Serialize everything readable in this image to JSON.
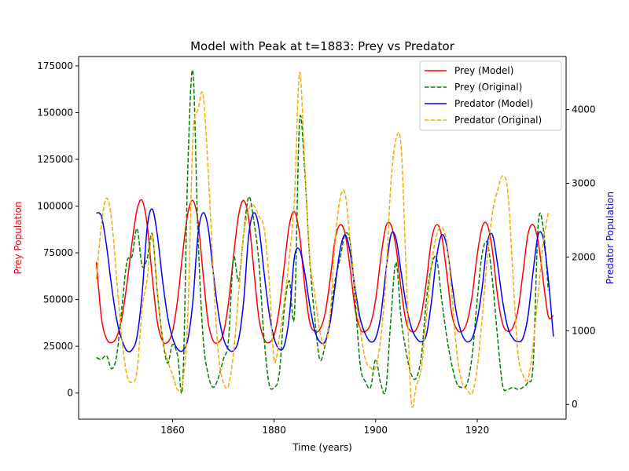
{
  "chart_data": {
    "type": "line",
    "title": "Model with Peak at t=1883: Prey vs Predator",
    "xlabel": "Time (years)",
    "ylabel_left": "Prey Population",
    "ylabel_right": "Predator Population",
    "xlim": [
      1841.5,
      1937.5
    ],
    "ylim_left": [
      -14000,
      180000
    ],
    "ylim_right": [
      -200,
      4720
    ],
    "xticks": [
      1860,
      1880,
      1900,
      1920
    ],
    "xtick_labels": [
      "1860",
      "1880",
      "1900",
      "1920"
    ],
    "yticks_left": [
      0,
      25000,
      50000,
      75000,
      100000,
      125000,
      150000,
      175000
    ],
    "ytick_labels_left": [
      "0",
      "25000",
      "50000",
      "75000",
      "100000",
      "125000",
      "150000",
      "175000"
    ],
    "yticks_right": [
      0,
      1000,
      2000,
      3000,
      4000
    ],
    "ytick_labels_right": [
      "0",
      "1000",
      "2000",
      "3000",
      "4000"
    ],
    "grid": false,
    "legend_position": "top-right",
    "colors": {
      "prey_model": "#ff0000",
      "prey_original": "#008000",
      "predator_model": "#0000ff",
      "predator_original": "#ffa500",
      "ylabel_left": "#ff0000",
      "ylabel_right": "#0000ff"
    },
    "series": [
      {
        "name": "Prey (Model)",
        "axis": "left",
        "style": "solid",
        "color": "#ff0000",
        "x": [
          1845,
          1846,
          1847,
          1848,
          1849,
          1850,
          1851,
          1852,
          1853,
          1854,
          1855,
          1856,
          1857,
          1858,
          1859,
          1860,
          1861,
          1862,
          1863,
          1864,
          1865,
          1866,
          1867,
          1868,
          1869,
          1870,
          1871,
          1872,
          1873,
          1874,
          1875,
          1876,
          1877,
          1878,
          1879,
          1880,
          1881,
          1882,
          1883,
          1884,
          1885,
          1886,
          1887,
          1888,
          1889,
          1890,
          1891,
          1892,
          1893,
          1894,
          1895,
          1896,
          1897,
          1898,
          1899,
          1900,
          1901,
          1902,
          1903,
          1904,
          1905,
          1906,
          1907,
          1908,
          1909,
          1910,
          1911,
          1912,
          1913,
          1914,
          1915,
          1916,
          1917,
          1918,
          1919,
          1920,
          1921,
          1922,
          1923,
          1924,
          1925,
          1926,
          1927,
          1928,
          1929,
          1930,
          1931,
          1932,
          1933,
          1934,
          1935
        ],
        "values": [
          70000,
          40000,
          29000,
          27000,
          30000,
          40000,
          58000,
          80000,
          98000,
          103000,
          90000,
          62000,
          38000,
          28000,
          27000,
          33000,
          50000,
          75000,
          96000,
          103000,
          92000,
          64000,
          38000,
          28000,
          27000,
          32000,
          48000,
          73000,
          95000,
          103000,
          93000,
          66000,
          40000,
          29000,
          27000,
          31000,
          45000,
          68000,
          90000,
          97000,
          85000,
          58000,
          38000,
          33000,
          34000,
          42000,
          60000,
          82000,
          90000,
          85000,
          66000,
          44000,
          34000,
          33000,
          37000,
          50000,
          72000,
          89000,
          90000,
          78000,
          56000,
          38000,
          33000,
          34000,
          42000,
          60000,
          82000,
          90000,
          84000,
          64000,
          42000,
          34000,
          33000,
          38000,
          52000,
          74000,
          89000,
          90000,
          76000,
          52000,
          37000,
          33000,
          35000,
          44000,
          64000,
          85000,
          90000,
          81000,
          60000,
          41000,
          41500
        ]
      },
      {
        "name": "Prey (Original)",
        "axis": "left",
        "style": "dashed",
        "color": "#008000",
        "x": [
          1845,
          1846,
          1847,
          1848,
          1849,
          1850,
          1851,
          1852,
          1853,
          1854,
          1855,
          1856,
          1857,
          1858,
          1859,
          1860,
          1861,
          1862,
          1863,
          1864,
          1865,
          1866,
          1867,
          1868,
          1869,
          1870,
          1871,
          1872,
          1873,
          1874,
          1875,
          1876,
          1877,
          1878,
          1879,
          1880,
          1881,
          1882,
          1883,
          1884,
          1885,
          1886,
          1887,
          1888,
          1889,
          1890,
          1891,
          1892,
          1893,
          1894,
          1895,
          1896,
          1897,
          1898,
          1899,
          1900,
          1901,
          1902,
          1903,
          1904,
          1905,
          1906,
          1907,
          1908,
          1909,
          1910,
          1911,
          1912,
          1913,
          1914,
          1915,
          1916,
          1917,
          1918,
          1919,
          1920,
          1921,
          1922,
          1923,
          1924,
          1925,
          1926,
          1927,
          1928,
          1929,
          1930,
          1931,
          1932,
          1933,
          1934
        ],
        "values": [
          19000,
          18000,
          20000,
          13000,
          20000,
          45000,
          70000,
          73000,
          88000,
          68000,
          72000,
          85000,
          54000,
          30000,
          16000,
          26000,
          20000,
          5000,
          120000,
          172000,
          85000,
          30000,
          10000,
          3000,
          8000,
          18000,
          28000,
          72000,
          60000,
          85000,
          105000,
          92000,
          70000,
          30000,
          5000,
          3000,
          10000,
          45000,
          60000,
          42000,
          145000,
          120000,
          72000,
          40000,
          18000,
          25000,
          40000,
          60000,
          72000,
          85000,
          80000,
          48000,
          14000,
          6000,
          3000,
          18000,
          5000,
          2000,
          40000,
          70000,
          40000,
          22000,
          10000,
          8000,
          20000,
          50000,
          68000,
          72000,
          50000,
          30000,
          15000,
          5000,
          3000,
          5000,
          20000,
          50000,
          75000,
          80000,
          60000,
          30000,
          4000,
          2000,
          3000,
          2000,
          3000,
          6000,
          15000,
          90000,
          88000,
          55000
        ]
      },
      {
        "name": "Predator (Model)",
        "axis": "right",
        "style": "solid",
        "color": "#0000ff",
        "x": [
          1845,
          1846,
          1847,
          1848,
          1849,
          1850,
          1851,
          1852,
          1853,
          1854,
          1855,
          1856,
          1857,
          1858,
          1859,
          1860,
          1861,
          1862,
          1863,
          1864,
          1865,
          1866,
          1867,
          1868,
          1869,
          1870,
          1871,
          1872,
          1873,
          1874,
          1875,
          1876,
          1877,
          1878,
          1879,
          1880,
          1881,
          1882,
          1883,
          1884,
          1885,
          1886,
          1887,
          1888,
          1889,
          1890,
          1891,
          1892,
          1893,
          1894,
          1895,
          1896,
          1897,
          1898,
          1899,
          1900,
          1901,
          1902,
          1903,
          1904,
          1905,
          1906,
          1907,
          1908,
          1909,
          1910,
          1911,
          1912,
          1913,
          1914,
          1915,
          1916,
          1917,
          1918,
          1919,
          1920,
          1921,
          1922,
          1923,
          1924,
          1925,
          1926,
          1927,
          1928,
          1929,
          1930,
          1931,
          1932,
          1933,
          1934,
          1935
        ],
        "values": [
          2600,
          2550,
          2150,
          1600,
          1150,
          880,
          730,
          740,
          920,
          1500,
          2400,
          2650,
          2300,
          1700,
          1200,
          900,
          750,
          730,
          880,
          1400,
          2300,
          2600,
          2400,
          1800,
          1250,
          900,
          750,
          730,
          880,
          1400,
          2300,
          2600,
          2400,
          1800,
          1250,
          900,
          750,
          800,
          1200,
          2000,
          2100,
          1800,
          1350,
          1000,
          850,
          850,
          1100,
          1600,
          2100,
          2300,
          2050,
          1550,
          1150,
          950,
          850,
          900,
          1200,
          1800,
          2300,
          2250,
          1800,
          1350,
          1050,
          900,
          850,
          950,
          1400,
          2000,
          2300,
          2150,
          1650,
          1200,
          950,
          850,
          900,
          1150,
          1600,
          2200,
          2300,
          1900,
          1400,
          1050,
          900,
          850,
          900,
          1200,
          1800,
          2300,
          2250,
          1700,
          920
        ]
      },
      {
        "name": "Predator (Original)",
        "axis": "right",
        "style": "dashed",
        "color": "#ffa500",
        "x": [
          1845,
          1846,
          1847,
          1848,
          1849,
          1850,
          1851,
          1852,
          1853,
          1854,
          1855,
          1856,
          1857,
          1858,
          1859,
          1860,
          1861,
          1862,
          1863,
          1864,
          1865,
          1866,
          1867,
          1868,
          1869,
          1870,
          1871,
          1872,
          1873,
          1874,
          1875,
          1876,
          1877,
          1878,
          1879,
          1880,
          1881,
          1882,
          1883,
          1884,
          1885,
          1886,
          1887,
          1888,
          1889,
          1890,
          1891,
          1892,
          1893,
          1894,
          1895,
          1896,
          1897,
          1898,
          1899,
          1900,
          1901,
          1902,
          1903,
          1904,
          1905,
          1906,
          1907,
          1908,
          1909,
          1910,
          1911,
          1912,
          1913,
          1914,
          1915,
          1916,
          1917,
          1918,
          1919,
          1920,
          1921,
          1922,
          1923,
          1924,
          1925,
          1926,
          1927,
          1928,
          1929,
          1930,
          1931,
          1932,
          1933,
          1934
        ],
        "values": [
          1700,
          2450,
          2800,
          2500,
          1700,
          900,
          400,
          300,
          450,
          1300,
          1700,
          2300,
          1500,
          900,
          600,
          400,
          200,
          300,
          1200,
          3600,
          4000,
          4200,
          3200,
          1800,
          700,
          300,
          250,
          700,
          1500,
          2300,
          2650,
          2700,
          2550,
          2400,
          1700,
          600,
          900,
          1400,
          2000,
          2800,
          4500,
          3300,
          2000,
          1500,
          1000,
          800,
          1200,
          2200,
          2800,
          2850,
          2200,
          1500,
          1000,
          600,
          500,
          500,
          900,
          1700,
          3000,
          3600,
          3500,
          1800,
          50,
          250,
          500,
          1200,
          1900,
          2300,
          2400,
          2200,
          1500,
          700,
          300,
          200,
          150,
          500,
          1200,
          2000,
          2600,
          2900,
          3100,
          2900,
          1800,
          700,
          400,
          350,
          800,
          1500,
          2200,
          2600
        ]
      }
    ]
  }
}
